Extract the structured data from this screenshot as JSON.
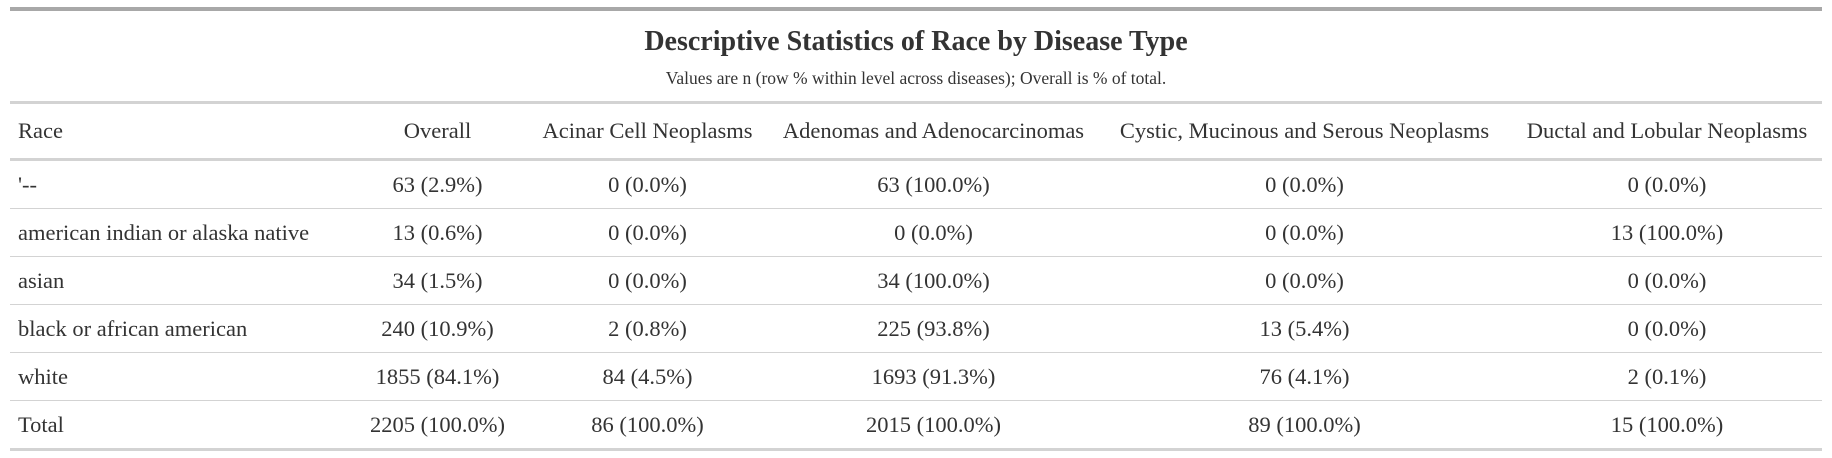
{
  "table": {
    "title": "Descriptive Statistics of Race by Disease Type",
    "subtitle": "Values are n (row % within level across diseases); Overall is % of total.",
    "columns": [
      "Race",
      "Overall",
      "Acinar Cell Neoplasms",
      "Adenomas and Adenocarcinomas",
      "Cystic, Mucinous and Serous Neoplasms",
      "Ductal and Lobular Neoplasms"
    ],
    "rows": [
      [
        "'--",
        "63 (2.9%)",
        "0 (0.0%)",
        "63 (100.0%)",
        "0 (0.0%)",
        "0 (0.0%)"
      ],
      [
        "american indian or alaska native",
        "13 (0.6%)",
        "0 (0.0%)",
        "0 (0.0%)",
        "0 (0.0%)",
        "13 (100.0%)"
      ],
      [
        "asian",
        "34 (1.5%)",
        "0 (0.0%)",
        "34 (100.0%)",
        "0 (0.0%)",
        "0 (0.0%)"
      ],
      [
        "black or african american",
        "240 (10.9%)",
        "2 (0.8%)",
        "225 (93.8%)",
        "13 (5.4%)",
        "0 (0.0%)"
      ],
      [
        "white",
        "1855 (84.1%)",
        "84 (4.5%)",
        "1693 (91.3%)",
        "76 (4.1%)",
        "2 (0.1%)"
      ],
      [
        "Total",
        "2205 (100.0%)",
        "86 (100.0%)",
        "2015 (100.0%)",
        "89 (100.0%)",
        "15 (100.0%)"
      ]
    ]
  }
}
